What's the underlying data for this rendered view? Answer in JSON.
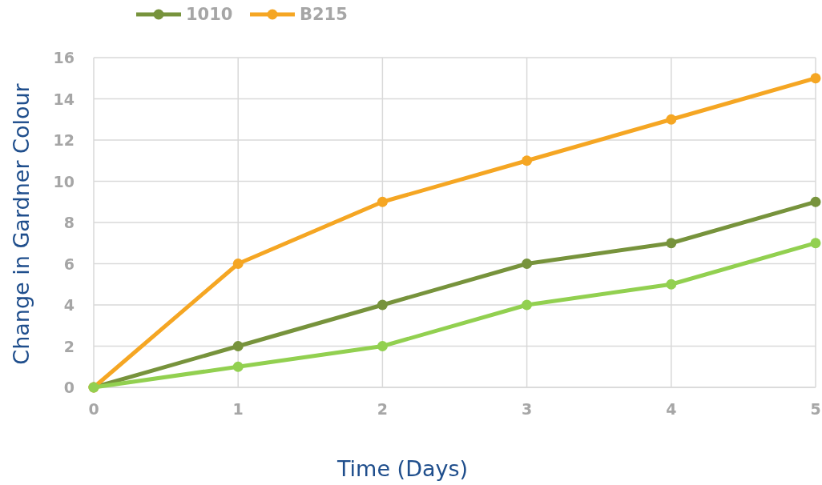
{
  "chart_data": {
    "type": "line",
    "xlabel": "Time (Days)",
    "ylabel": "Change in Gardner Colour",
    "x": [
      0,
      1,
      2,
      3,
      4,
      5
    ],
    "series": [
      {
        "name": "1010",
        "color": "#77933c",
        "values": [
          0,
          2,
          4,
          6,
          7,
          9
        ]
      },
      {
        "name": "B215",
        "color": "#f5a623",
        "values": [
          0,
          6,
          9,
          11,
          13,
          15
        ]
      },
      {
        "color": "#92d050",
        "values": [
          0,
          1,
          2,
          4,
          5,
          7
        ]
      }
    ],
    "xlim": [
      0,
      5
    ],
    "xticks": [
      0,
      1,
      2,
      3,
      4,
      5
    ],
    "ylim": [
      0,
      16
    ],
    "yticks": [
      0,
      2,
      4,
      6,
      8,
      10,
      12,
      14,
      16
    ],
    "grid": true,
    "legend": "top",
    "marker": "circle",
    "line_style": "solid"
  }
}
